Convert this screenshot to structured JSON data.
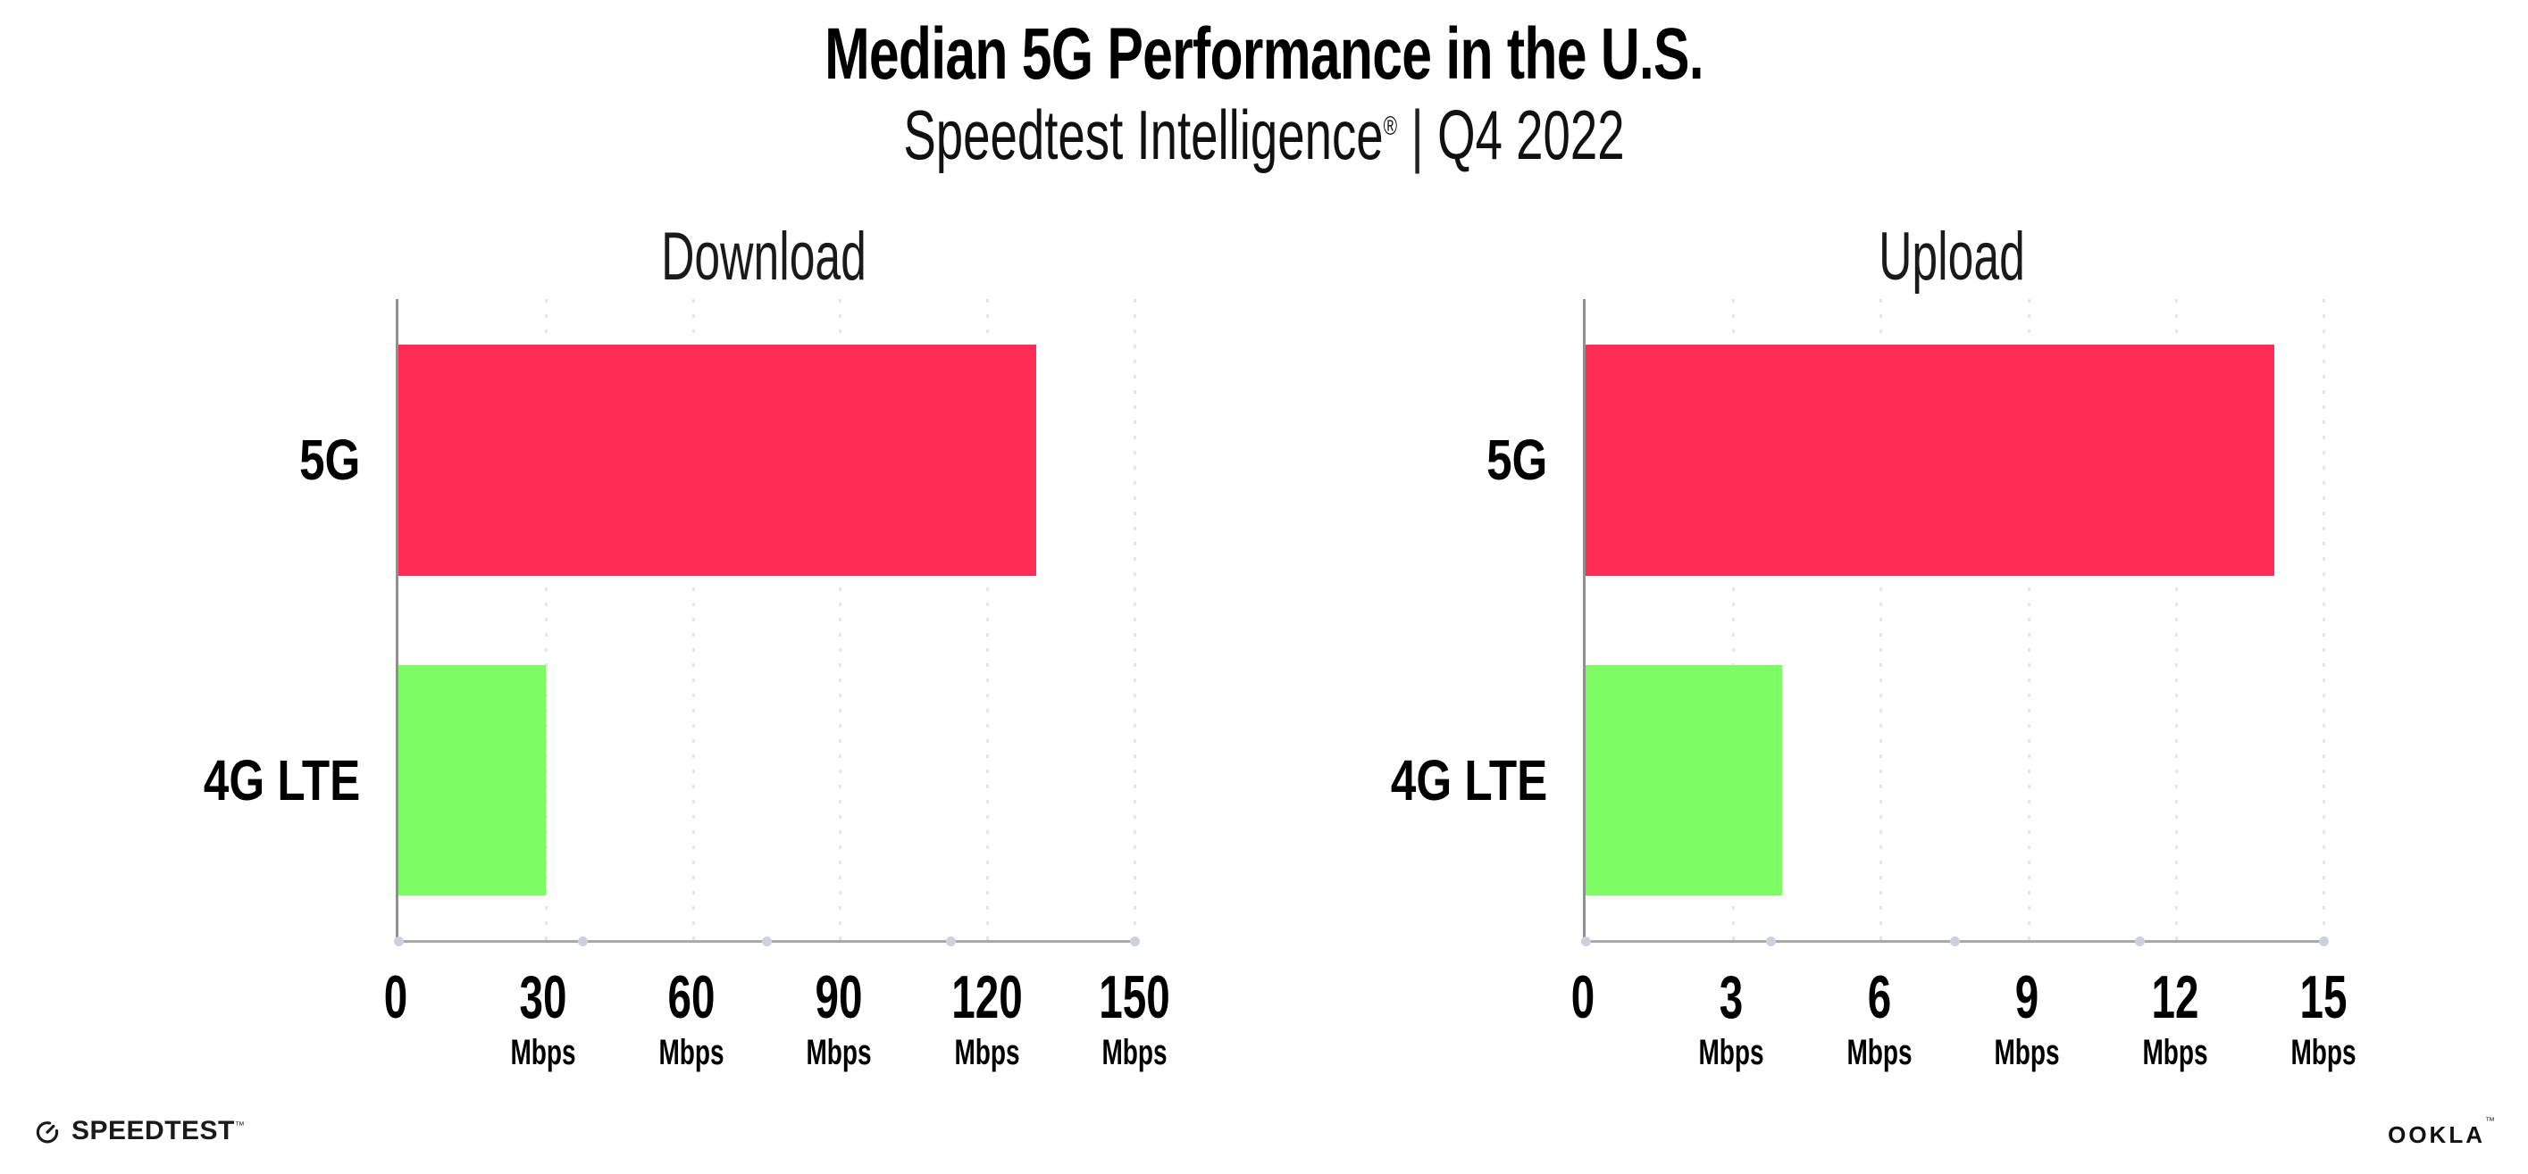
{
  "header": {
    "title": "Median 5G Performance in the U.S.",
    "subtitle_brand": "Speedtest Intelligence",
    "subtitle_reg": "®",
    "subtitle_separator": "|",
    "subtitle_period": "Q4 2022"
  },
  "footer": {
    "speedtest_label": "SPEEDTEST",
    "speedtest_tm": "™",
    "ookla_label": "OOKLA",
    "ookla_tm": "™"
  },
  "colors": {
    "bar_5g": "#ff2d55",
    "bar_4g_lte": "#7dfc64",
    "axis": "#9c9c9c",
    "gridline": "#e4e4ee",
    "tick_dot": "#ccd2dd",
    "text": "#000000"
  },
  "chart_data": [
    {
      "type": "bar",
      "orientation": "horizontal",
      "title": "Download",
      "categories": [
        "5G",
        "4G LTE"
      ],
      "values": [
        130,
        30
      ],
      "unit": "Mbps",
      "xlim": [
        0,
        150
      ],
      "xticks": [
        0,
        30,
        60,
        90,
        120,
        150
      ],
      "tick_unit_label": "Mbps",
      "grid": "vertical-dotted",
      "legend": "none",
      "bar_colors": [
        "#ff2d55",
        "#7dfc64"
      ]
    },
    {
      "type": "bar",
      "orientation": "horizontal",
      "title": "Upload",
      "categories": [
        "5G",
        "4G LTE"
      ],
      "values": [
        14,
        4
      ],
      "unit": "Mbps",
      "xlim": [
        0,
        15
      ],
      "xticks": [
        0,
        3,
        6,
        9,
        12,
        15
      ],
      "tick_unit_label": "Mbps",
      "grid": "vertical-dotted",
      "legend": "none",
      "bar_colors": [
        "#ff2d55",
        "#7dfc64"
      ]
    }
  ]
}
